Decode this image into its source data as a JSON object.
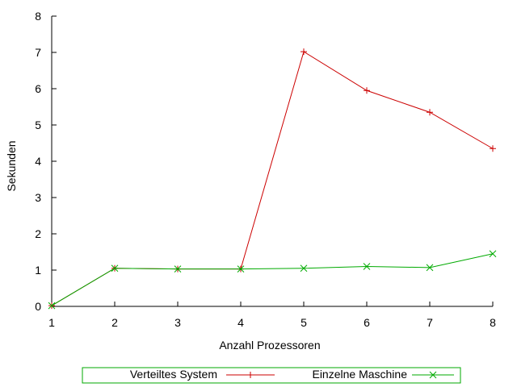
{
  "chart_data": {
    "type": "line",
    "xlabel": "Anzahl Prozessoren",
    "ylabel": "Sekunden",
    "x": [
      1,
      2,
      3,
      4,
      5,
      6,
      7,
      8
    ],
    "xlim": [
      1,
      8
    ],
    "ylim": [
      0,
      8
    ],
    "xticks": [
      "1",
      "2",
      "3",
      "4",
      "5",
      "6",
      "7",
      "8"
    ],
    "yticks": [
      "0",
      "1",
      "2",
      "3",
      "4",
      "5",
      "6",
      "7",
      "8"
    ],
    "grid": false,
    "legend_position": "bottom",
    "series": [
      {
        "name": "Verteiltes System",
        "color": "#cc0000",
        "marker": "plus",
        "values": [
          0.02,
          1.05,
          1.03,
          1.03,
          7.02,
          5.95,
          5.35,
          4.35
        ]
      },
      {
        "name": "Einzelne Maschine",
        "color": "#00aa00",
        "marker": "cross",
        "values": [
          0.02,
          1.05,
          1.03,
          1.03,
          1.05,
          1.1,
          1.07,
          1.45
        ]
      }
    ]
  }
}
